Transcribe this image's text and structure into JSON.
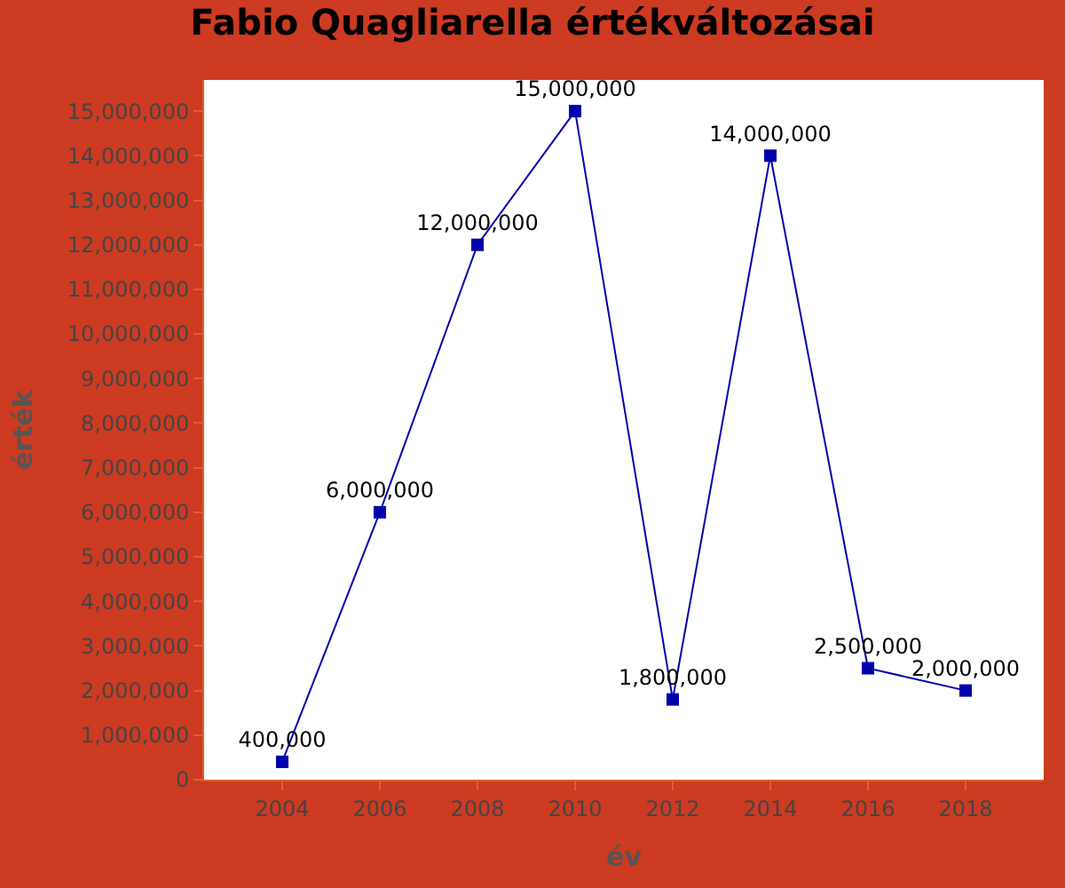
{
  "chart_data": {
    "type": "line",
    "title": "Fabio Quagliarella értékváltozásai",
    "xlabel": "év",
    "ylabel": "érték",
    "x": [
      2004,
      2006,
      2008,
      2010,
      2012,
      2014,
      2016,
      2018
    ],
    "series": [
      {
        "color": "#0000aa",
        "values": [
          400000,
          6000000,
          12000000,
          15000000,
          1800000,
          14000000,
          2500000,
          2000000
        ],
        "value_labels": [
          "400,000",
          "6,000,000",
          "12,000,000",
          "15,000,000",
          "1,800,000",
          "14,000,000",
          "2,500,000",
          "2,000,000"
        ]
      }
    ],
    "xlim": [
      2002.4,
      2019.6
    ],
    "xticks": [
      2004,
      2006,
      2008,
      2010,
      2012,
      2014,
      2016,
      2018
    ],
    "ylim": [
      0,
      15700000
    ],
    "yticks": [
      0,
      {
        "value": 1000000,
        "label": "1,000,000"
      },
      {
        "value": 2000000,
        "label": "2,000,000"
      },
      {
        "value": 3000000,
        "label": "3,000,000"
      },
      {
        "value": 4000000,
        "label": "4,000,000"
      },
      {
        "value": 5000000,
        "label": "5,000,000"
      },
      {
        "value": 6000000,
        "label": "6,000,000"
      },
      {
        "value": 7000000,
        "label": "7,000,000"
      },
      {
        "value": 8000000,
        "label": "8,000,000"
      },
      {
        "value": 9000000,
        "label": "9,000,000"
      },
      {
        "value": 10000000,
        "label": "10,000,000"
      },
      {
        "value": 11000000,
        "label": "11,000,000"
      },
      {
        "value": 12000000,
        "label": "12,000,000"
      },
      {
        "value": 13000000,
        "label": "13,000,000"
      },
      {
        "value": 14000000,
        "label": "14,000,000"
      },
      {
        "value": 15000000,
        "label": "15,000,000"
      }
    ],
    "legend": false,
    "marker": "square",
    "line_style": "solid"
  }
}
